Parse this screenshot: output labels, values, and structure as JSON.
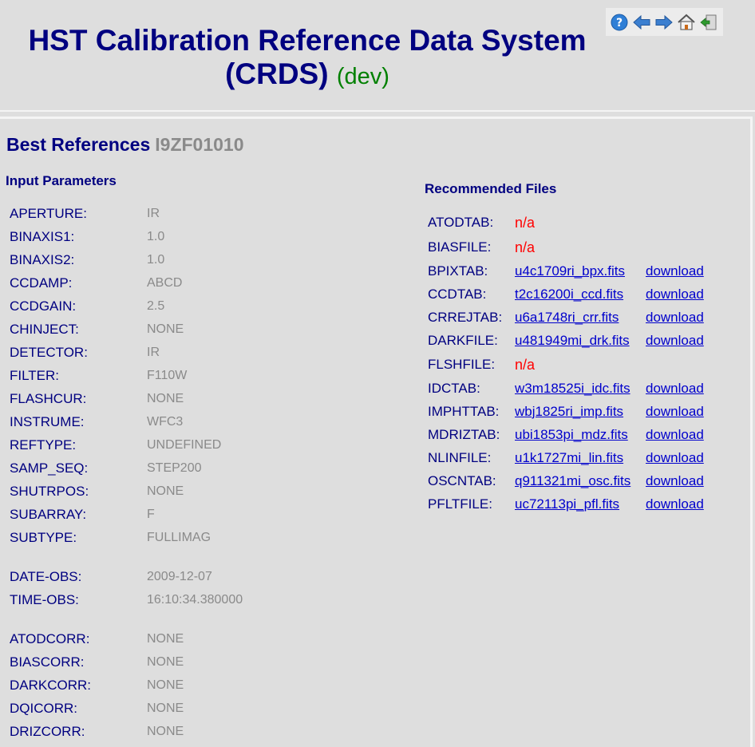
{
  "header": {
    "title_line1": "HST Calibration Reference Data System",
    "title_line2": "(CRDS)",
    "instance": "(dev)",
    "nav_icons": [
      "help-icon",
      "back-arrow-icon",
      "forward-arrow-icon",
      "home-icon",
      "logout-icon"
    ]
  },
  "page": {
    "heading": "Best References",
    "dataset": "I9ZF01010"
  },
  "input": {
    "heading": "Input Parameters",
    "params": [
      {
        "key": "APERTURE:",
        "value": "IR"
      },
      {
        "key": "BINAXIS1:",
        "value": "1.0"
      },
      {
        "key": "BINAXIS2:",
        "value": "1.0"
      },
      {
        "key": "CCDAMP:",
        "value": "ABCD"
      },
      {
        "key": "CCDGAIN:",
        "value": "2.5"
      },
      {
        "key": "CHINJECT:",
        "value": "NONE"
      },
      {
        "key": "DETECTOR:",
        "value": "IR"
      },
      {
        "key": "FILTER:",
        "value": "F110W"
      },
      {
        "key": "FLASHCUR:",
        "value": "NONE"
      },
      {
        "key": "INSTRUME:",
        "value": "WFC3"
      },
      {
        "key": "REFTYPE:",
        "value": "UNDEFINED"
      },
      {
        "key": "SAMP_SEQ:",
        "value": "STEP200"
      },
      {
        "key": "SHUTRPOS:",
        "value": "NONE"
      },
      {
        "key": "SUBARRAY:",
        "value": "F"
      },
      {
        "key": "SUBTYPE:",
        "value": "FULLIMAG"
      },
      {
        "key": "DATE-OBS:",
        "value": "2009-12-07"
      },
      {
        "key": "TIME-OBS:",
        "value": "16:10:34.380000"
      },
      {
        "key": "ATODCORR:",
        "value": "NONE"
      },
      {
        "key": "BIASCORR:",
        "value": "NONE"
      },
      {
        "key": "DARKCORR:",
        "value": "NONE"
      },
      {
        "key": "DQICORR:",
        "value": "NONE"
      },
      {
        "key": "DRIZCORR:",
        "value": "NONE"
      }
    ]
  },
  "recommended": {
    "heading": "Recommended Files",
    "download_label": "download",
    "files": [
      {
        "key": "ATODTAB:",
        "file": "n/a",
        "available": false
      },
      {
        "key": "BIASFILE:",
        "file": "n/a",
        "available": false
      },
      {
        "key": "BPIXTAB:",
        "file": "u4c1709ri_bpx.fits",
        "available": true
      },
      {
        "key": "CCDTAB:",
        "file": "t2c16200i_ccd.fits",
        "available": true
      },
      {
        "key": "CRREJTAB:",
        "file": "u6a1748ri_crr.fits",
        "available": true
      },
      {
        "key": "DARKFILE:",
        "file": "u481949mi_drk.fits",
        "available": true
      },
      {
        "key": "FLSHFILE:",
        "file": "n/a",
        "available": false
      },
      {
        "key": "IDCTAB:",
        "file": "w3m18525i_idc.fits",
        "available": true
      },
      {
        "key": "IMPHTTAB:",
        "file": "wbj1825ri_imp.fits",
        "available": true
      },
      {
        "key": "MDRIZTAB:",
        "file": "ubi1853pi_mdz.fits",
        "available": true
      },
      {
        "key": "NLINFILE:",
        "file": "u1k1727mi_lin.fits",
        "available": true
      },
      {
        "key": "OSCNTAB:",
        "file": "q911321mi_osc.fits",
        "available": true
      },
      {
        "key": "PFLTFILE:",
        "file": "uc72113pi_pfl.fits",
        "available": true
      }
    ]
  },
  "colors": {
    "heading": "#000080",
    "value_gray": "#8a8a8a",
    "link": "#0000cc",
    "not_available": "#ff0000",
    "dev_green": "#008000",
    "background": "#dedede"
  }
}
